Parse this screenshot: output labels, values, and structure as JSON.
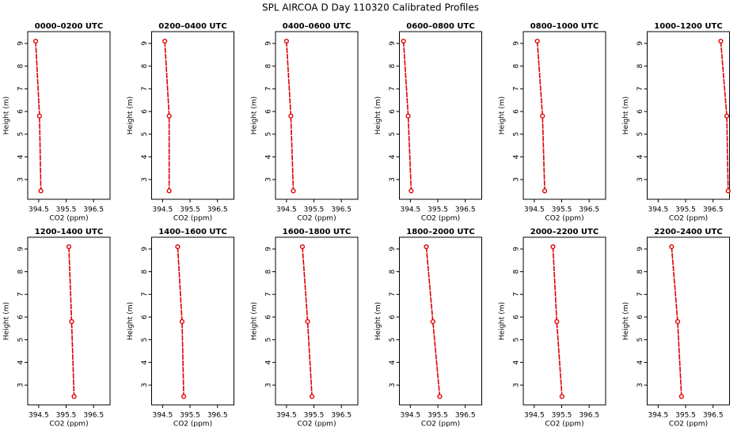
{
  "title": "SPL AIRCOA D  Day 110320  Calibrated Profiles",
  "chart_data": [
    {
      "type": "line",
      "title": "0000–0200 UTC",
      "xlabel": "CO2 (ppm)",
      "ylabel": "Height (m)",
      "color": "#dd0000",
      "x": [
        394.39,
        394.53,
        394.58
      ],
      "values": [
        9.1,
        5.8,
        2.5
      ],
      "xlim": [
        394.1,
        397.1
      ],
      "xticks": [
        394.5,
        395.5,
        396.5
      ],
      "ylim": [
        2.13,
        9.52
      ],
      "yticks": [
        3,
        4,
        5,
        6,
        7,
        8,
        9
      ]
    },
    {
      "type": "line",
      "title": "0200–0400 UTC",
      "xlabel": "CO2 (ppm)",
      "ylabel": "Height (m)",
      "color": "#dd0000",
      "x": [
        394.58,
        394.74,
        394.74
      ],
      "values": [
        9.1,
        5.8,
        2.5
      ],
      "xlim": [
        394.1,
        397.1
      ],
      "xticks": [
        394.5,
        395.5,
        396.5
      ],
      "ylim": [
        2.13,
        9.52
      ],
      "yticks": [
        3,
        4,
        5,
        6,
        7,
        8,
        9
      ]
    },
    {
      "type": "line",
      "title": "0400–0600 UTC",
      "xlabel": "CO2 (ppm)",
      "ylabel": "Height (m)",
      "color": "#dd0000",
      "x": [
        394.5,
        394.66,
        394.75
      ],
      "values": [
        9.1,
        5.8,
        2.5
      ],
      "xlim": [
        394.1,
        397.1
      ],
      "xticks": [
        394.5,
        395.5,
        396.5
      ],
      "ylim": [
        2.13,
        9.52
      ],
      "yticks": [
        3,
        4,
        5,
        6,
        7,
        8,
        9
      ]
    },
    {
      "type": "line",
      "title": "0600–0800 UTC",
      "xlabel": "CO2 (ppm)",
      "ylabel": "Height (m)",
      "color": "#dd0000",
      "x": [
        394.25,
        394.42,
        394.53
      ],
      "values": [
        9.1,
        5.8,
        2.5
      ],
      "xlim": [
        394.1,
        397.1
      ],
      "xticks": [
        394.5,
        395.5,
        396.5
      ],
      "ylim": [
        2.13,
        9.52
      ],
      "yticks": [
        3,
        4,
        5,
        6,
        7,
        8,
        9
      ]
    },
    {
      "type": "line",
      "title": "0800–1000 UTC",
      "xlabel": "CO2 (ppm)",
      "ylabel": "Height (m)",
      "color": "#dd0000",
      "x": [
        394.61,
        394.8,
        394.88
      ],
      "values": [
        9.1,
        5.8,
        2.5
      ],
      "xlim": [
        394.1,
        397.1
      ],
      "xticks": [
        394.5,
        395.5,
        396.5
      ],
      "ylim": [
        2.13,
        9.52
      ],
      "yticks": [
        3,
        4,
        5,
        6,
        7,
        8,
        9
      ]
    },
    {
      "type": "line",
      "title": "1000–1200 UTC",
      "xlabel": "CO2 (ppm)",
      "ylabel": "Height (m)",
      "color": "#dd0000",
      "x": [
        396.78,
        397.0,
        397.05
      ],
      "values": [
        9.1,
        5.8,
        2.5
      ],
      "xlim": [
        394.1,
        397.1
      ],
      "xticks": [
        394.5,
        395.5,
        396.5
      ],
      "ylim": [
        2.13,
        9.52
      ],
      "yticks": [
        3,
        4,
        5,
        6,
        7,
        8,
        9
      ]
    },
    {
      "type": "line",
      "title": "1200–1400 UTC",
      "xlabel": "CO2 (ppm)",
      "ylabel": "Height (m)",
      "color": "#dd0000",
      "x": [
        395.6,
        395.7,
        395.79
      ],
      "values": [
        9.1,
        5.8,
        2.5
      ],
      "xlim": [
        394.1,
        397.1
      ],
      "xticks": [
        394.5,
        395.5,
        396.5
      ],
      "ylim": [
        2.13,
        9.52
      ],
      "yticks": [
        3,
        4,
        5,
        6,
        7,
        8,
        9
      ]
    },
    {
      "type": "line",
      "title": "1400–1600 UTC",
      "xlabel": "CO2 (ppm)",
      "ylabel": "Height (m)",
      "color": "#dd0000",
      "x": [
        395.05,
        395.21,
        395.27
      ],
      "values": [
        9.1,
        5.8,
        2.5
      ],
      "xlim": [
        394.1,
        397.1
      ],
      "xticks": [
        394.5,
        395.5,
        396.5
      ],
      "ylim": [
        2.13,
        9.52
      ],
      "yticks": [
        3,
        4,
        5,
        6,
        7,
        8,
        9
      ]
    },
    {
      "type": "line",
      "title": "1600–1800 UTC",
      "xlabel": "CO2 (ppm)",
      "ylabel": "Height (m)",
      "color": "#dd0000",
      "x": [
        395.08,
        395.27,
        395.43
      ],
      "values": [
        9.1,
        5.8,
        2.5
      ],
      "xlim": [
        394.1,
        397.1
      ],
      "xticks": [
        394.5,
        395.5,
        396.5
      ],
      "ylim": [
        2.13,
        9.52
      ],
      "yticks": [
        3,
        4,
        5,
        6,
        7,
        8,
        9
      ]
    },
    {
      "type": "line",
      "title": "1800–2000 UTC",
      "xlabel": "CO2 (ppm)",
      "ylabel": "Height (m)",
      "color": "#dd0000",
      "x": [
        395.08,
        395.32,
        395.57
      ],
      "values": [
        9.1,
        5.8,
        2.5
      ],
      "xlim": [
        394.1,
        397.1
      ],
      "xticks": [
        394.5,
        395.5,
        396.5
      ],
      "ylim": [
        2.13,
        9.52
      ],
      "yticks": [
        3,
        4,
        5,
        6,
        7,
        8,
        9
      ]
    },
    {
      "type": "line",
      "title": "2000–2200 UTC",
      "xlabel": "CO2 (ppm)",
      "ylabel": "Height (m)",
      "color": "#dd0000",
      "x": [
        395.18,
        395.32,
        395.51
      ],
      "values": [
        9.1,
        5.8,
        2.5
      ],
      "xlim": [
        394.1,
        397.1
      ],
      "xticks": [
        394.5,
        395.5,
        396.5
      ],
      "ylim": [
        2.13,
        9.52
      ],
      "yticks": [
        3,
        4,
        5,
        6,
        7,
        8,
        9
      ]
    },
    {
      "type": "line",
      "title": "2200–2400 UTC",
      "xlabel": "CO2 (ppm)",
      "ylabel": "Height (m)",
      "color": "#dd0000",
      "x": [
        394.99,
        395.21,
        395.35
      ],
      "values": [
        9.1,
        5.8,
        2.5
      ],
      "xlim": [
        394.1,
        397.1
      ],
      "xticks": [
        394.5,
        395.5,
        396.5
      ],
      "ylim": [
        2.13,
        9.52
      ],
      "yticks": [
        3,
        4,
        5,
        6,
        7,
        8,
        9
      ]
    }
  ]
}
